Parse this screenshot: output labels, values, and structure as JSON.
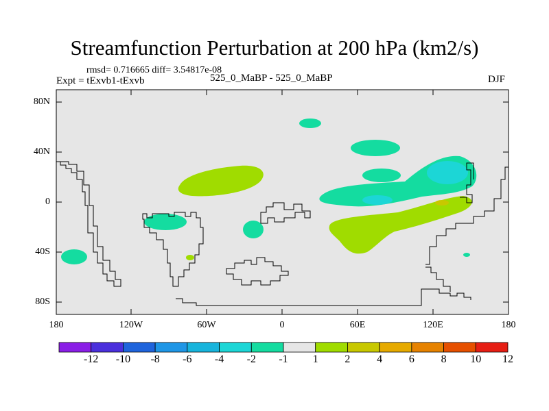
{
  "figure": {
    "title": "Streamfunction Perturbation at 200 hPa (km2/s)",
    "stats_line": "rmsd= 0.716665 diff= 3.54817e-08",
    "experiment_label": "Expt = tExvb1-tExvb",
    "center_label": "525_0_MaBP - 525_0_MaBP",
    "season_label": "DJF"
  },
  "map": {
    "lat_labels": [
      "80N",
      "40N",
      "0",
      "40S",
      "80S"
    ],
    "lon_labels": [
      "180",
      "120W",
      "60W",
      "0",
      "60E",
      "120E",
      "180"
    ],
    "background_color": "#e6e6e6"
  },
  "colorbar": {
    "labels": [
      "-12",
      "-10",
      "-8",
      "-6",
      "-4",
      "-2",
      "-1",
      "1",
      "2",
      "4",
      "6",
      "8",
      "10",
      "12"
    ],
    "colors": [
      "#8a1ee6",
      "#4a2fdc",
      "#1f64dc",
      "#1f96e6",
      "#17b4dc",
      "#1cd6d6",
      "#14dca0",
      "#e6e6e6",
      "#a0dc00",
      "#c8c800",
      "#e6aa00",
      "#e68200",
      "#e65000",
      "#e61e14"
    ]
  }
}
